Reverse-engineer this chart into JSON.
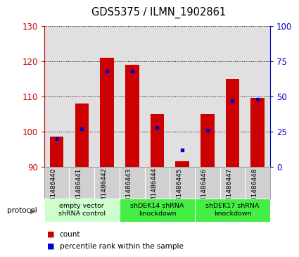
{
  "title": "GDS5375 / ILMN_1902861",
  "samples": [
    "GSM1486440",
    "GSM1486441",
    "GSM1486442",
    "GSM1486443",
    "GSM1486444",
    "GSM1486445",
    "GSM1486446",
    "GSM1486447",
    "GSM1486448"
  ],
  "counts": [
    98.5,
    108,
    121,
    119,
    105,
    91.5,
    105,
    115,
    109.5
  ],
  "percentile_ranks": [
    20,
    27,
    68,
    68,
    28,
    12,
    26,
    47,
    48
  ],
  "ymin": 90,
  "ymax": 130,
  "y2min": 0,
  "y2max": 100,
  "yticks": [
    90,
    100,
    110,
    120,
    130
  ],
  "y2ticks": [
    0,
    25,
    50,
    75,
    100
  ],
  "bar_color": "#cc0000",
  "percentile_color": "#0000cc",
  "bar_width": 0.55,
  "groups": [
    {
      "label": "empty vector\nshRNA control",
      "start": 0,
      "end": 3,
      "color": "#ccffcc"
    },
    {
      "label": "shDEK14 shRNA\nknockdown",
      "start": 3,
      "end": 6,
      "color": "#44ee44"
    },
    {
      "label": "shDEK17 shRNA\nknockdown",
      "start": 6,
      "end": 9,
      "color": "#44ee44"
    }
  ],
  "protocol_label": "protocol",
  "legend_count_label": "count",
  "legend_percentile_label": "percentile rank within the sample",
  "bar_color_hex": "#cc0000",
  "perc_color_hex": "#0000cc",
  "background_color": "#ffffff",
  "plot_bg_color": "#e0e0e0",
  "sample_box_color": "#d0d0d0"
}
